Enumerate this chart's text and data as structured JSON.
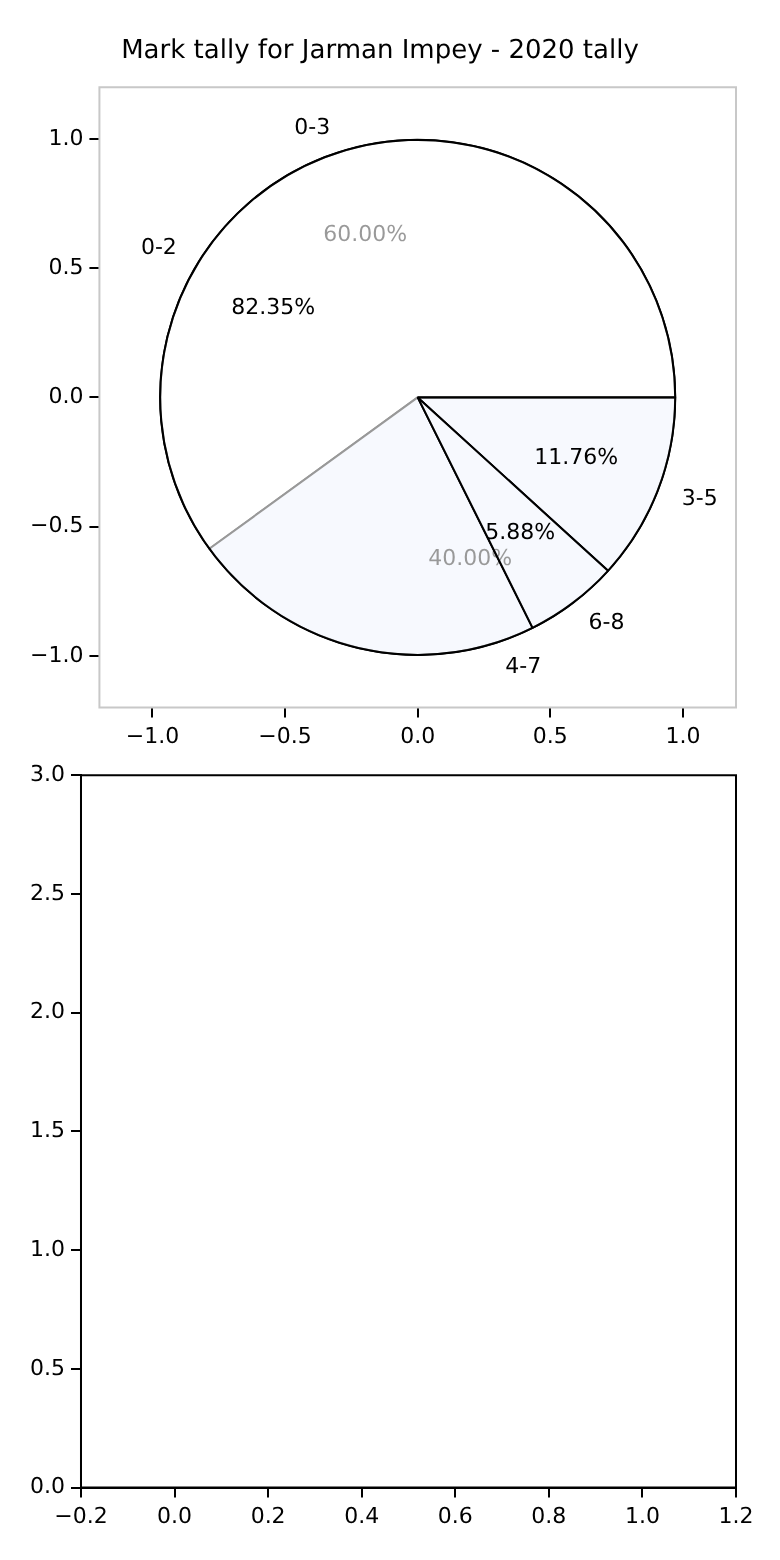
{
  "chart_data": [
    {
      "type": "scatter",
      "title": "Mark tally for Jarman Impey - 2020 tally",
      "xlim": [
        -1.2,
        1.2
      ],
      "xticks": [
        {
          "value": -1,
          "label": "−1.0"
        },
        {
          "value": -0.5,
          "label": "−0.5"
        },
        {
          "value": 0,
          "label": "0.0"
        },
        {
          "value": 0.5,
          "label": "0.5"
        },
        {
          "value": 1,
          "label": "1.0"
        }
      ],
      "ylim": [
        -1.2,
        1.2
      ],
      "yticks": [
        {
          "value": -1,
          "label": "−1.0"
        },
        {
          "value": -0.5,
          "label": "−0.5"
        },
        {
          "value": 0,
          "label": "0.0"
        },
        {
          "value": 0.5,
          "label": "0.5"
        },
        {
          "value": 1,
          "label": "1.0"
        }
      ]
    },
    {
      "type": "pie",
      "categories": [
        "0-3",
        "4-7"
      ],
      "values": [
        60,
        40
      ],
      "colors": [
        "#ffffff",
        "#eaf0fc"
      ],
      "value_labels": [
        "60.00%",
        "40.00%"
      ]
    },
    {
      "type": "pie",
      "categories": [
        "0-2",
        "3-5",
        "6-8"
      ],
      "values": [
        82.35,
        11.76,
        5.88
      ],
      "colors": [
        "#ffffff",
        "#ffffff",
        "#ffffff"
      ],
      "value_labels": [
        "82.35%",
        "11.76%",
        "5.88%"
      ]
    },
    {
      "type": "scatter",
      "xlim": [
        -0.2,
        1.2
      ],
      "xticks": [
        {
          "value": -0.2,
          "label": "−0.2"
        },
        {
          "value": 0,
          "label": "0.0"
        },
        {
          "value": 0.2,
          "label": "0.2"
        },
        {
          "value": 0.4,
          "label": "0.4"
        },
        {
          "value": 0.6,
          "label": "0.6"
        },
        {
          "value": 0.8,
          "label": "0.8"
        },
        {
          "value": 1,
          "label": "1.0"
        },
        {
          "value": 1.2,
          "label": "1.2"
        }
      ],
      "ylim": [
        0,
        3
      ],
      "yticks": [
        {
          "value": 0,
          "label": "0.0"
        },
        {
          "value": 0.5,
          "label": "0.5"
        },
        {
          "value": 1,
          "label": "1.0"
        },
        {
          "value": 1.5,
          "label": "1.5"
        },
        {
          "value": 2,
          "label": "2.0"
        },
        {
          "value": 2.5,
          "label": "2.5"
        },
        {
          "value": 3,
          "label": "3.0"
        }
      ]
    }
  ]
}
